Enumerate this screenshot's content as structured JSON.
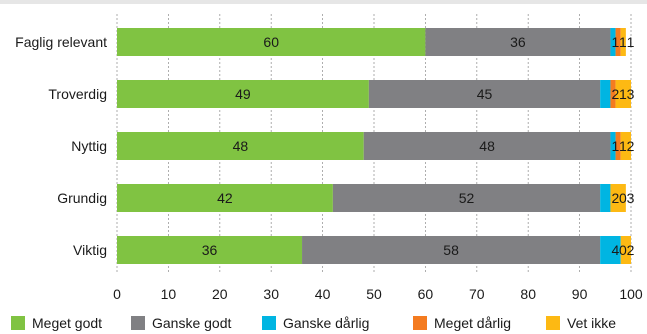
{
  "chart_data": {
    "type": "bar",
    "orientation": "horizontal",
    "stacked": true,
    "title": "",
    "xlabel": "",
    "ylabel": "",
    "xlim": [
      0,
      100
    ],
    "xticks": [
      0,
      10,
      20,
      30,
      40,
      50,
      60,
      70,
      80,
      90,
      100
    ],
    "grid": "vertical",
    "legend_position": "bottom",
    "categories": [
      "Faglig relevant",
      "Troverdig",
      "Nyttig",
      "Grundig",
      "Viktig"
    ],
    "series": [
      {
        "name": "Meget godt",
        "color": "#80c342",
        "values": [
          60,
          49,
          48,
          42,
          36
        ]
      },
      {
        "name": "Ganske godt",
        "color": "#808083",
        "values": [
          36,
          45,
          48,
          52,
          58
        ]
      },
      {
        "name": "Ganske dårlig",
        "color": "#00b5e2",
        "values": [
          1,
          2,
          1,
          2,
          4
        ]
      },
      {
        "name": "Meget dårlig",
        "color": "#f47b20",
        "values": [
          1,
          1,
          1,
          0,
          0
        ]
      },
      {
        "name": "Vet ikke",
        "color": "#fdb913",
        "values": [
          1,
          3,
          2,
          3,
          2
        ]
      }
    ]
  }
}
